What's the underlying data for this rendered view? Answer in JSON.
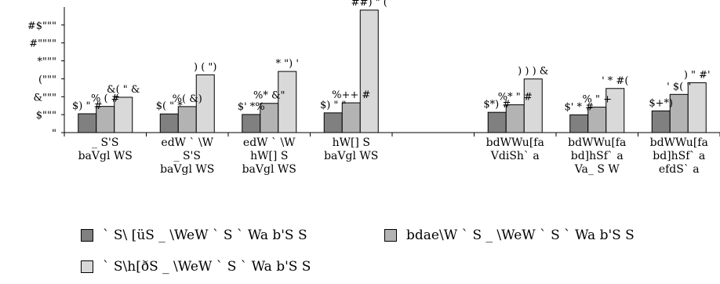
{
  "chart_data": {
    "type": "bar",
    "title": "",
    "xlabel": "",
    "ylabel": "",
    "ylim": [
      0,
      70
    ],
    "yticks": [
      {
        "value": 0,
        "label": "\""
      },
      {
        "value": 10,
        "label": "$\"\"\""
      },
      {
        "value": 20,
        "label": "&\"\"\""
      },
      {
        "value": 30,
        "label": "(\"\"\""
      },
      {
        "value": 40,
        "label": "*\"\"\""
      },
      {
        "value": 50,
        "label": "#\"\"\"\""
      },
      {
        "value": 60,
        "label": "#$\"\"\""
      }
    ],
    "grid": false,
    "legend_position": "bottom",
    "categories": [
      [
        "_ S'S",
        "baVgl WS"
      ],
      [
        "edW ` \\W",
        "_ S'S",
        "baVgl WS"
      ],
      [
        "edW ` \\W",
        "hW[] S",
        "baVgl WS"
      ],
      [
        "hW[] S",
        "baVgl WS"
      ],
      [],
      [
        "bdWWu[fa",
        "VdiSh` a"
      ],
      [
        "bdWWu[fa",
        "bd]hSf` a",
        "Va_ S W"
      ],
      [
        "bdWWu[fa",
        "bd]hSf` a",
        "efdS` a"
      ]
    ],
    "series": [
      {
        "name": "` S\\ [üS _ \\WeW ` S ` Wa b'S S",
        "color": "#808080",
        "values": [
          10.5,
          10.4,
          10.1,
          11.0,
          null,
          11.3,
          9.9,
          12.1
        ],
        "labels": [
          "$) \" #",
          "$( \" *",
          "$' *%",
          "$) \" \"",
          "",
          "$*) #",
          "$' * #",
          "$+*)"
        ]
      },
      {
        "name": "bdae\\W ` S _ \\WeW ` S ` Wa b'S S",
        "color": "#b3b3b3",
        "values": [
          14.6,
          14.5,
          16.3,
          16.6,
          null,
          15.5,
          14.2,
          21.3
        ],
        "labels": [
          "% ( #",
          "%( &)",
          "%* &\"",
          "%++ #",
          "",
          "%* \" #",
          "% \" +",
          "' $( \""
        ]
      },
      {
        "name": "` S\\h[ðS _ \\WeW ` S ` Wa b'S S",
        "color": "#d9d9d9",
        "values": [
          19.7,
          32.2,
          34.1,
          68.3,
          null,
          29.9,
          24.6,
          27.8
        ],
        "labels": [
          "&( \" &",
          ") ( \")",
          "* \") '",
          "##) \" (",
          "",
          ") ) ) &",
          "' * #(",
          ") \" #'"
        ]
      }
    ]
  }
}
